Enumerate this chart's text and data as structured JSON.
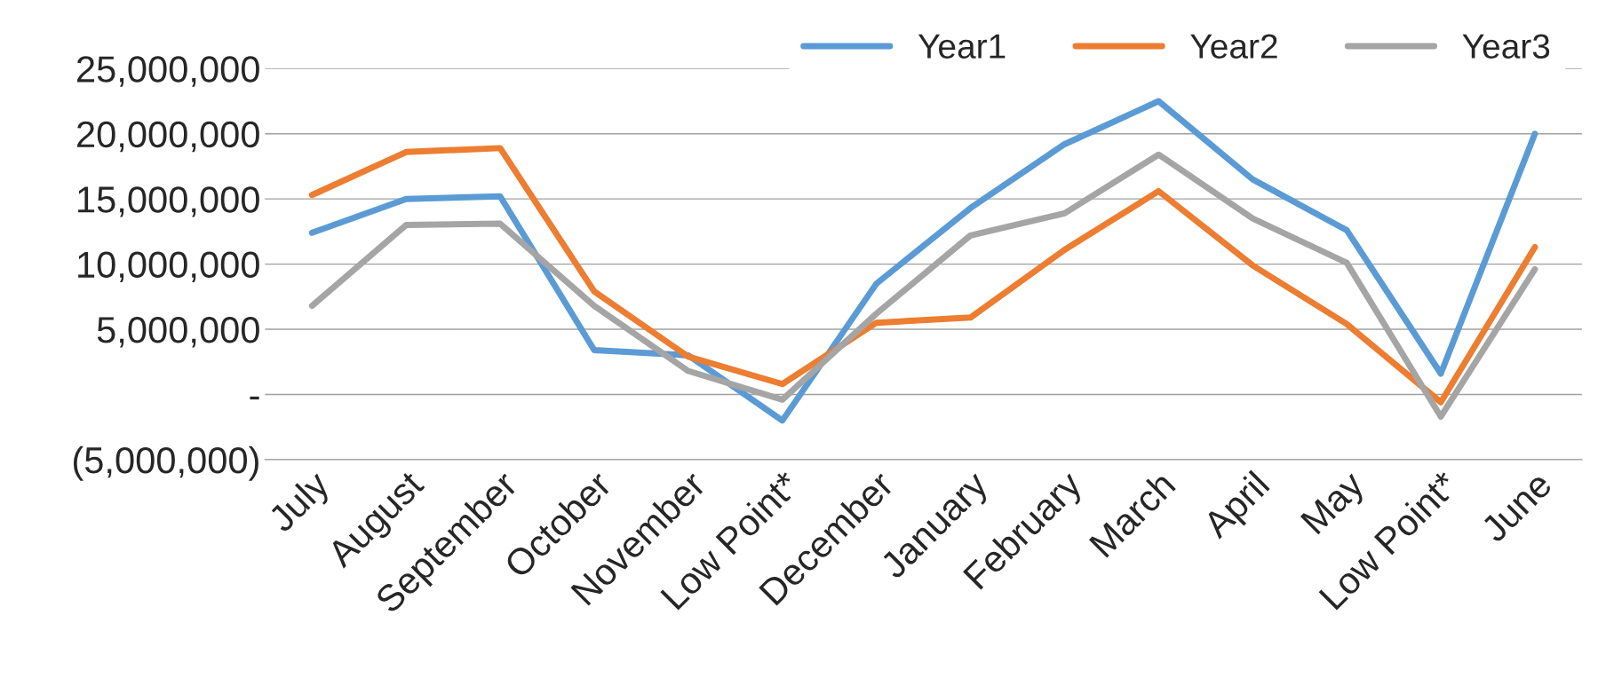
{
  "chart_data": {
    "type": "line",
    "categories": [
      "July",
      "August",
      "September",
      "October",
      "November",
      "Low Point*",
      "December",
      "January",
      "February",
      "March",
      "April",
      "May",
      "Low Point*",
      "June"
    ],
    "series": [
      {
        "name": "Year1",
        "color": "#5b9bd5",
        "values": [
          12400000.0,
          15000000.0,
          15200000.0,
          3400000.0,
          3000000.0,
          -2000000.0,
          8500000.0,
          14300000.0,
          19200000.0,
          22500000.0,
          16500000.0,
          12600000.0,
          1600000.0,
          20000000.0
        ]
      },
      {
        "name": "Year2",
        "color": "#ed7d31",
        "values": [
          15300000.0,
          18600000.0,
          18900000.0,
          7900000.0,
          2900000.0,
          800000.0,
          5500000.0,
          5900000.0,
          11100000.0,
          15600000.0,
          9900000.0,
          5400000.0,
          -600000.0,
          11300000.0
        ]
      },
      {
        "name": "Year3",
        "color": "#a5a5a5",
        "values": [
          6800000.0,
          13000000.0,
          13100000.0,
          6800000.0,
          1800000.0,
          -400000.0,
          6200000.0,
          12200000.0,
          13900000.0,
          18400000.0,
          13500000.0,
          10100000.0,
          -1700000.0,
          9600000.0
        ]
      }
    ],
    "ylim": [
      -5000000,
      25000000
    ],
    "yticks": [
      {
        "value": -5000000,
        "label": "(5,000,000)"
      },
      {
        "value": 0,
        "label": "-"
      },
      {
        "value": 5000000,
        "label": "5,000,000"
      },
      {
        "value": 10000000,
        "label": "10,000,000"
      },
      {
        "value": 15000000,
        "label": "15,000,000"
      },
      {
        "value": 20000000,
        "label": "20,000,000"
      },
      {
        "value": 25000000,
        "label": "25,000,000"
      }
    ],
    "grid": "y",
    "legend": "top right",
    "line_style": "solid"
  }
}
